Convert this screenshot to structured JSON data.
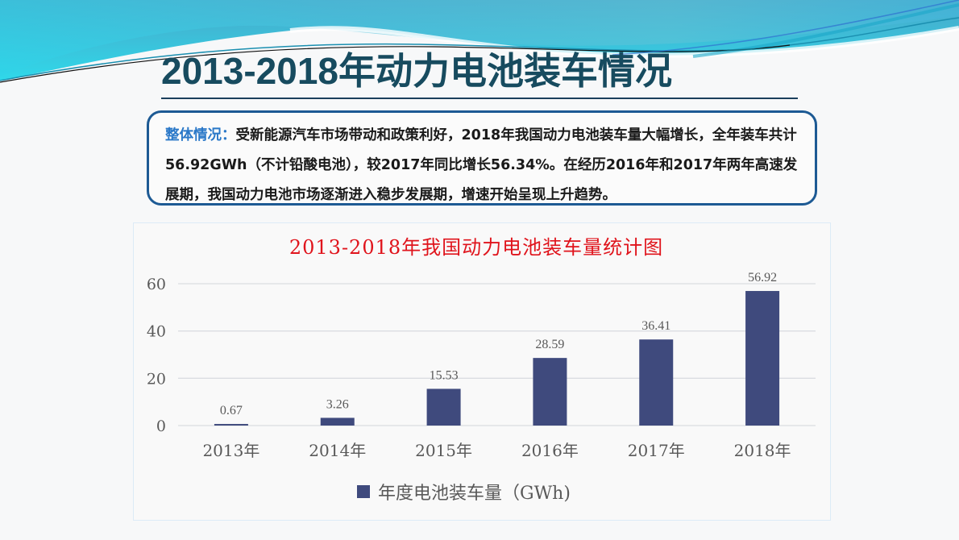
{
  "slide": {
    "title": "2013-2018年动力电池装车情况",
    "colors": {
      "title": "#174b5f",
      "summary_border": "#1d5a94",
      "summary_label": "#2a78c8",
      "chart_title": "#e0141c",
      "bar": "#3f4a7d",
      "gridline": "#dadde2",
      "axis_text": "#595959"
    }
  },
  "summary": {
    "label": "整体情况：",
    "text": "受新能源汽车市场带动和政策利好，2018年我国动力电池装车量大幅增长，全年装车共计56.92GWh（不计铅酸电池），较2017年同比增长56.34%。在经历2016年和2017年两年高速发展期，我国动力电池市场逐渐进入稳步发展期，增速开始呈现上升趋势。"
  },
  "chart_data": {
    "type": "bar",
    "title": "2013-2018年我国动力电池装车量统计图",
    "categories": [
      "2013年",
      "2014年",
      "2015年",
      "2016年",
      "2017年",
      "2018年"
    ],
    "series": [
      {
        "name": "年度电池装车量（GWh)",
        "values": [
          0.67,
          3.26,
          15.53,
          28.59,
          36.41,
          56.92
        ]
      }
    ],
    "data_labels": [
      "0.67",
      "3.26",
      "15.53",
      "28.59",
      "36.41",
      "56.92"
    ],
    "xlabel": "",
    "ylabel": "",
    "ylim": [
      0,
      60
    ],
    "yticks": [
      0,
      20,
      40,
      60
    ],
    "ytick_labels": [
      "0",
      "20",
      "40",
      "60"
    ],
    "grid": true,
    "legend_position": "bottom"
  },
  "legend": {
    "label": "年度电池装车量（GWh)"
  }
}
